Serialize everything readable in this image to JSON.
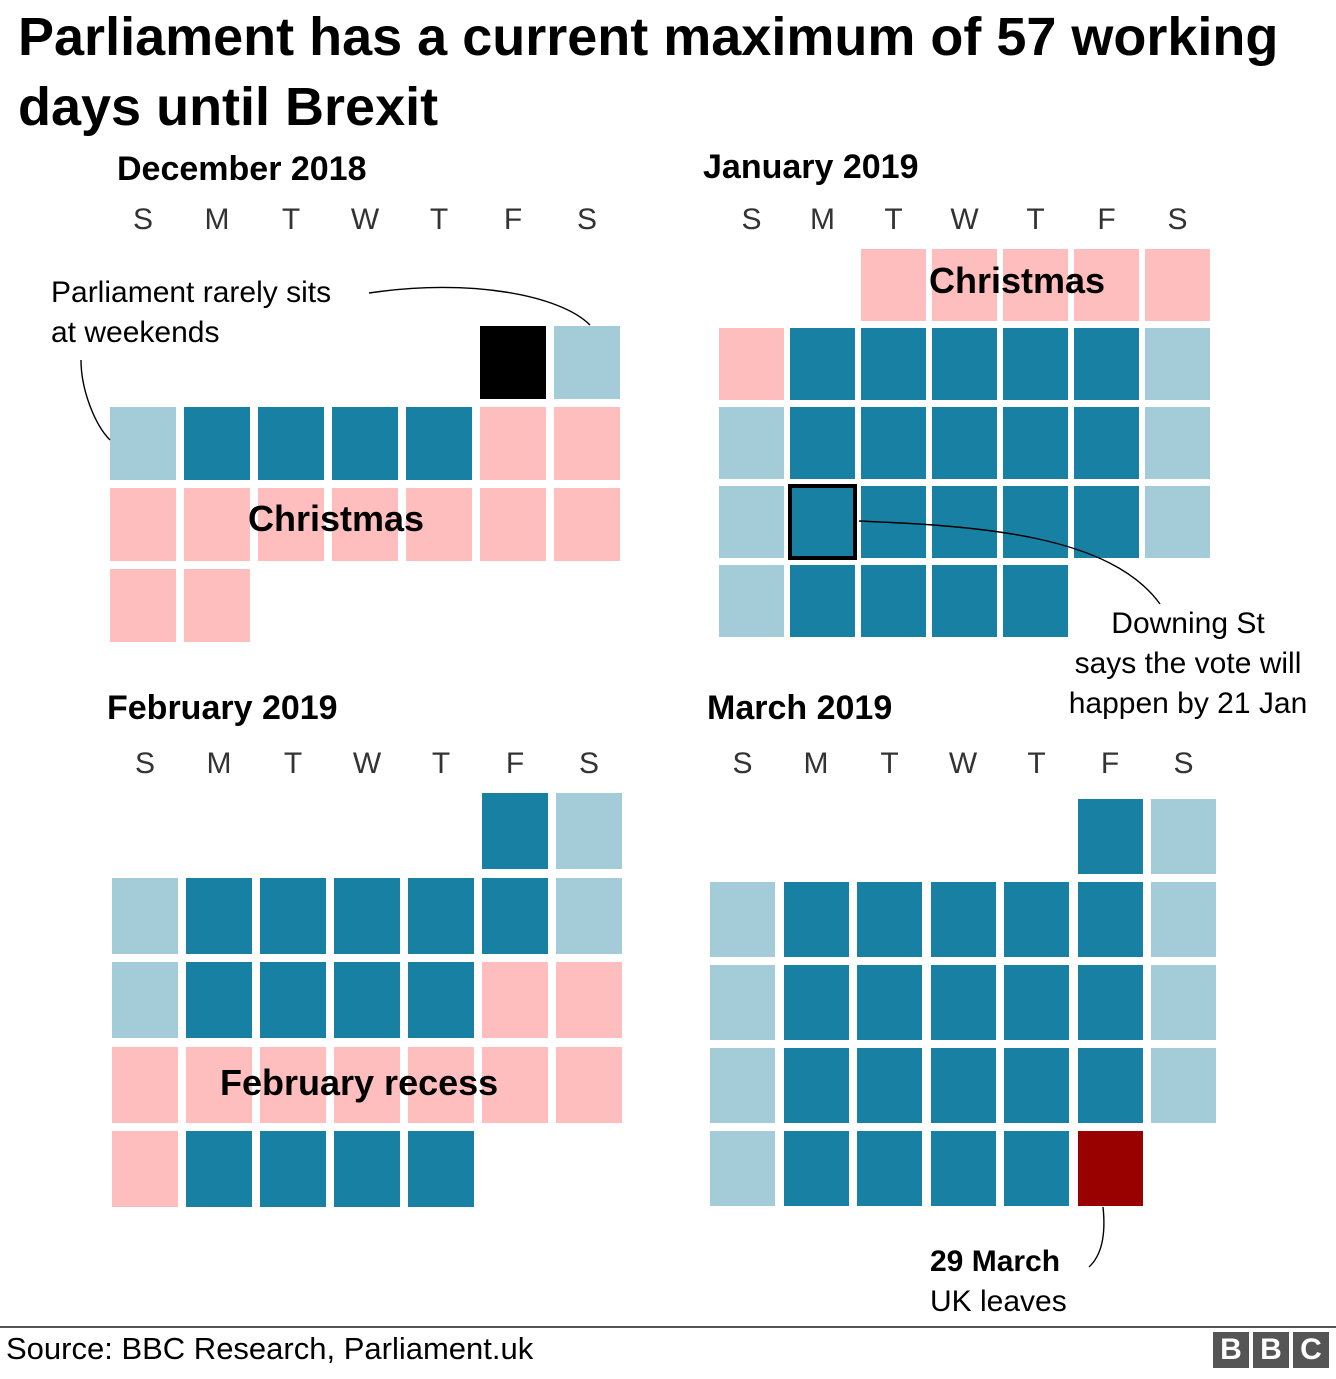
{
  "title": "Parliament has a current maximum of 57 working days until Brexit",
  "weekdays": [
    "S",
    "M",
    "T",
    "W",
    "T",
    "F",
    "S"
  ],
  "colors": {
    "sitting": "#1880a3",
    "weekend": "#a3ccd8",
    "recess": "#ffbebe",
    "today": "#000000",
    "brexit_day": "#990000"
  },
  "calendars": {
    "december": {
      "title": "December 2018",
      "event_label": "Christmas",
      "rows": [
        [
          null,
          null,
          null,
          null,
          null,
          "today",
          "weekend"
        ],
        [
          "weekend",
          "sitting",
          "sitting",
          "sitting",
          "sitting",
          "recess",
          "recess"
        ],
        [
          "recess",
          "recess",
          "recess",
          "recess",
          "recess",
          "recess",
          "recess"
        ],
        [
          "recess",
          "recess",
          null,
          null,
          null,
          null,
          null
        ]
      ]
    },
    "january": {
      "title": "January 2019",
      "event_label": "Christmas",
      "rows": [
        [
          null,
          null,
          "recess",
          "recess",
          "recess",
          "recess",
          "recess"
        ],
        [
          "recess",
          "sitting",
          "sitting",
          "sitting",
          "sitting",
          "sitting",
          "weekend"
        ],
        [
          "weekend",
          "sitting",
          "sitting",
          "sitting",
          "sitting",
          "sitting",
          "weekend"
        ],
        [
          "weekend",
          "sitting",
          "sitting",
          "sitting",
          "sitting",
          "sitting",
          "weekend"
        ],
        [
          "weekend",
          "sitting",
          "sitting",
          "sitting",
          "sitting",
          null,
          null
        ]
      ]
    },
    "february": {
      "title": "February 2019",
      "event_label": "February recess",
      "rows": [
        [
          null,
          null,
          null,
          null,
          null,
          "sitting",
          "weekend"
        ],
        [
          "weekend",
          "sitting",
          "sitting",
          "sitting",
          "sitting",
          "sitting",
          "weekend"
        ],
        [
          "weekend",
          "sitting",
          "sitting",
          "sitting",
          "sitting",
          "recess",
          "recess"
        ],
        [
          "recess",
          "recess",
          "recess",
          "recess",
          "recess",
          "recess",
          "recess"
        ],
        [
          "recess",
          "sitting",
          "sitting",
          "sitting",
          "sitting",
          null,
          null
        ]
      ]
    },
    "march": {
      "title": "March 2019",
      "event_label": "",
      "rows": [
        [
          null,
          null,
          null,
          null,
          null,
          "sitting",
          "weekend"
        ],
        [
          "weekend",
          "sitting",
          "sitting",
          "sitting",
          "sitting",
          "sitting",
          "weekend"
        ],
        [
          "weekend",
          "sitting",
          "sitting",
          "sitting",
          "sitting",
          "sitting",
          "weekend"
        ],
        [
          "weekend",
          "sitting",
          "sitting",
          "sitting",
          "sitting",
          "sitting",
          "weekend"
        ],
        [
          "weekend",
          "sitting",
          "sitting",
          "sitting",
          "sitting",
          "brexit_day",
          null
        ]
      ]
    }
  },
  "annotations": {
    "weekends": {
      "line1": "Parliament rarely sits",
      "line2": "at weekends"
    },
    "vote": {
      "line1": "Downing St",
      "line2": "says the vote will",
      "line3": "happen by 21 Jan"
    },
    "brexit": {
      "date": "29 March",
      "text": "UK leaves"
    }
  },
  "footer": {
    "source": "Source: BBC Research, Parliament.uk",
    "logo": [
      "B",
      "B",
      "C"
    ]
  }
}
